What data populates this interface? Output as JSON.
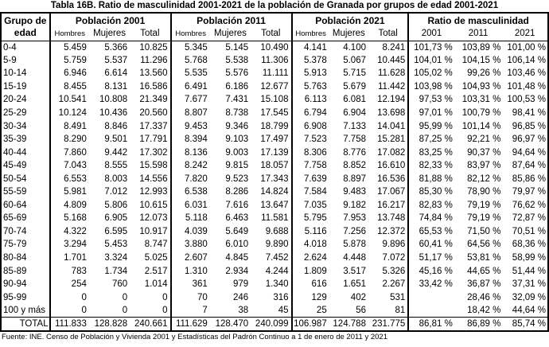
{
  "title": "Tabla 16B. Ratio de masculinidad 2001-2021 de la población de Granada por grupos de edad 2001-2021",
  "footer": "Fuente: INE. Censo de Población y Vivienda 2001 y Estadísticas del Padrón Continuo a 1 de enero de 2011 y 2021",
  "table": {
    "corner": [
      "Grupo de",
      "edad"
    ],
    "groups": [
      {
        "label": "Población 2001",
        "sub": [
          "Hombres",
          "Mujeres",
          "Total"
        ]
      },
      {
        "label": "Población 2011",
        "sub": [
          "Hombres",
          "Mujeres",
          "Total"
        ]
      },
      {
        "label": "Población 2021",
        "sub": [
          "Hombres",
          "Mujeres",
          "Total"
        ]
      },
      {
        "label": "Ratio de masculinidad",
        "sub": [
          "2001",
          "2011",
          "2021"
        ]
      }
    ],
    "rows": [
      {
        "label": "0-4",
        "cells": [
          "5.459",
          "5.366",
          "10.825",
          "5.345",
          "5.145",
          "10.490",
          "4.141",
          "4.100",
          "8.241",
          "101,73 %",
          "103,89 %",
          "101,00 %"
        ]
      },
      {
        "label": "5-9",
        "cells": [
          "5.759",
          "5.537",
          "11.296",
          "5.768",
          "5.538",
          "11.306",
          "5.378",
          "5.067",
          "10.445",
          "104,01 %",
          "104,15 %",
          "106,14 %"
        ]
      },
      {
        "label": "10-14",
        "cells": [
          "6.946",
          "6.614",
          "13.560",
          "5.535",
          "5.576",
          "11.111",
          "5.913",
          "5.715",
          "11.628",
          "105,02 %",
          "99,26 %",
          "103,46 %"
        ]
      },
      {
        "label": "15-19",
        "cells": [
          "8.455",
          "8.131",
          "16.586",
          "6.491",
          "6.186",
          "12.677",
          "5.763",
          "5.679",
          "11.442",
          "103,98 %",
          "104,93 %",
          "101,48 %"
        ]
      },
      {
        "label": "20-24",
        "cells": [
          "10.541",
          "10.808",
          "21.349",
          "7.677",
          "7.431",
          "15.108",
          "6.113",
          "6.081",
          "12.194",
          "97,53 %",
          "103,31 %",
          "100,53 %"
        ]
      },
      {
        "label": "25-29",
        "cells": [
          "10.124",
          "10.436",
          "20.560",
          "8.807",
          "8.738",
          "17.545",
          "6.794",
          "6.904",
          "13.698",
          "97,01 %",
          "100,79 %",
          "98,41 %"
        ]
      },
      {
        "label": "30-34",
        "cells": [
          "8.491",
          "8.846",
          "17.337",
          "9.453",
          "9.346",
          "18.799",
          "6.908",
          "7.133",
          "14.041",
          "95,99 %",
          "101,14 %",
          "96,85 %"
        ]
      },
      {
        "label": "35-39",
        "cells": [
          "8.290",
          "9.501",
          "17.791",
          "8.394",
          "9.103",
          "17.497",
          "7.523",
          "7.758",
          "15.281",
          "87,25 %",
          "92,21 %",
          "96,97 %"
        ]
      },
      {
        "label": "40-44",
        "cells": [
          "7.860",
          "9.442",
          "17.302",
          "8.136",
          "9.003",
          "17.139",
          "8.306",
          "8.776",
          "17.082",
          "83,25 %",
          "90,37 %",
          "94,64 %"
        ]
      },
      {
        "label": "45-49",
        "cells": [
          "7.043",
          "8.555",
          "15.598",
          "8.242",
          "9.815",
          "18.057",
          "7.758",
          "8.852",
          "16.610",
          "82,33 %",
          "83,97 %",
          "87,64 %"
        ]
      },
      {
        "label": "50-54",
        "cells": [
          "6.553",
          "8.003",
          "14.556",
          "7.820",
          "9.523",
          "17.343",
          "7.639",
          "8.897",
          "16.536",
          "81,88 %",
          "82,12 %",
          "85,86 %"
        ]
      },
      {
        "label": "55-59",
        "cells": [
          "5.981",
          "7.012",
          "12.993",
          "6.538",
          "8.286",
          "14.824",
          "7.584",
          "9.483",
          "17.067",
          "85,30 %",
          "78,90 %",
          "79,97 %"
        ]
      },
      {
        "label": "60-64",
        "cells": [
          "4.809",
          "5.806",
          "10.615",
          "6.031",
          "7.616",
          "13.647",
          "7.035",
          "9.182",
          "16.217",
          "82,83 %",
          "79,19 %",
          "76,62 %"
        ]
      },
      {
        "label": "65-69",
        "cells": [
          "5.168",
          "6.905",
          "12.073",
          "5.118",
          "6.463",
          "11.581",
          "5.795",
          "7.953",
          "13.748",
          "74,84 %",
          "79,19 %",
          "72,87 %"
        ]
      },
      {
        "label": "70-74",
        "cells": [
          "4.322",
          "6.595",
          "10.917",
          "4.039",
          "5.649",
          "9.688",
          "5.116",
          "7.256",
          "12.372",
          "65,53 %",
          "71,50 %",
          "70,51 %"
        ]
      },
      {
        "label": "75-79",
        "cells": [
          "3.294",
          "5.453",
          "8.747",
          "3.880",
          "6.010",
          "9.890",
          "4.018",
          "5.878",
          "9.896",
          "60,41 %",
          "64,56 %",
          "68,36 %"
        ]
      },
      {
        "label": "80-84",
        "cells": [
          "1.701",
          "3.324",
          "5.025",
          "2.607",
          "4.845",
          "7.452",
          "2.624",
          "4.448",
          "7.072",
          "51,17 %",
          "53,81 %",
          "58,99 %"
        ]
      },
      {
        "label": "85-89",
        "cells": [
          "783",
          "1.734",
          "2.517",
          "1.310",
          "2.934",
          "4.244",
          "1.809",
          "3.517",
          "5.326",
          "45,16 %",
          "44,65 %",
          "51,44 %"
        ]
      },
      {
        "label": "90-94",
        "cells": [
          "254",
          "760",
          "1.014",
          "361",
          "979",
          "1.340",
          "616",
          "1.651",
          "2.267",
          "33,42 %",
          "36,87 %",
          "37,31 %"
        ]
      },
      {
        "label": "95-99",
        "cells": [
          "0",
          "0",
          "0",
          "70",
          "246",
          "316",
          "129",
          "402",
          "531",
          "",
          "28,46 %",
          "32,09 %"
        ]
      },
      {
        "label": "100 y más",
        "cells": [
          "0",
          "0",
          "0",
          "7",
          "38",
          "45",
          "25",
          "56",
          "81",
          "",
          "18,42 %",
          "44,64 %"
        ]
      }
    ],
    "total": {
      "label": "TOTAL",
      "cells": [
        "111.833",
        "128.828",
        "240.661",
        "111.629",
        "128.470",
        "240.099",
        "106.987",
        "124.788",
        "231.775",
        "86,81 %",
        "86,89 %",
        "85,74 %"
      ]
    }
  }
}
